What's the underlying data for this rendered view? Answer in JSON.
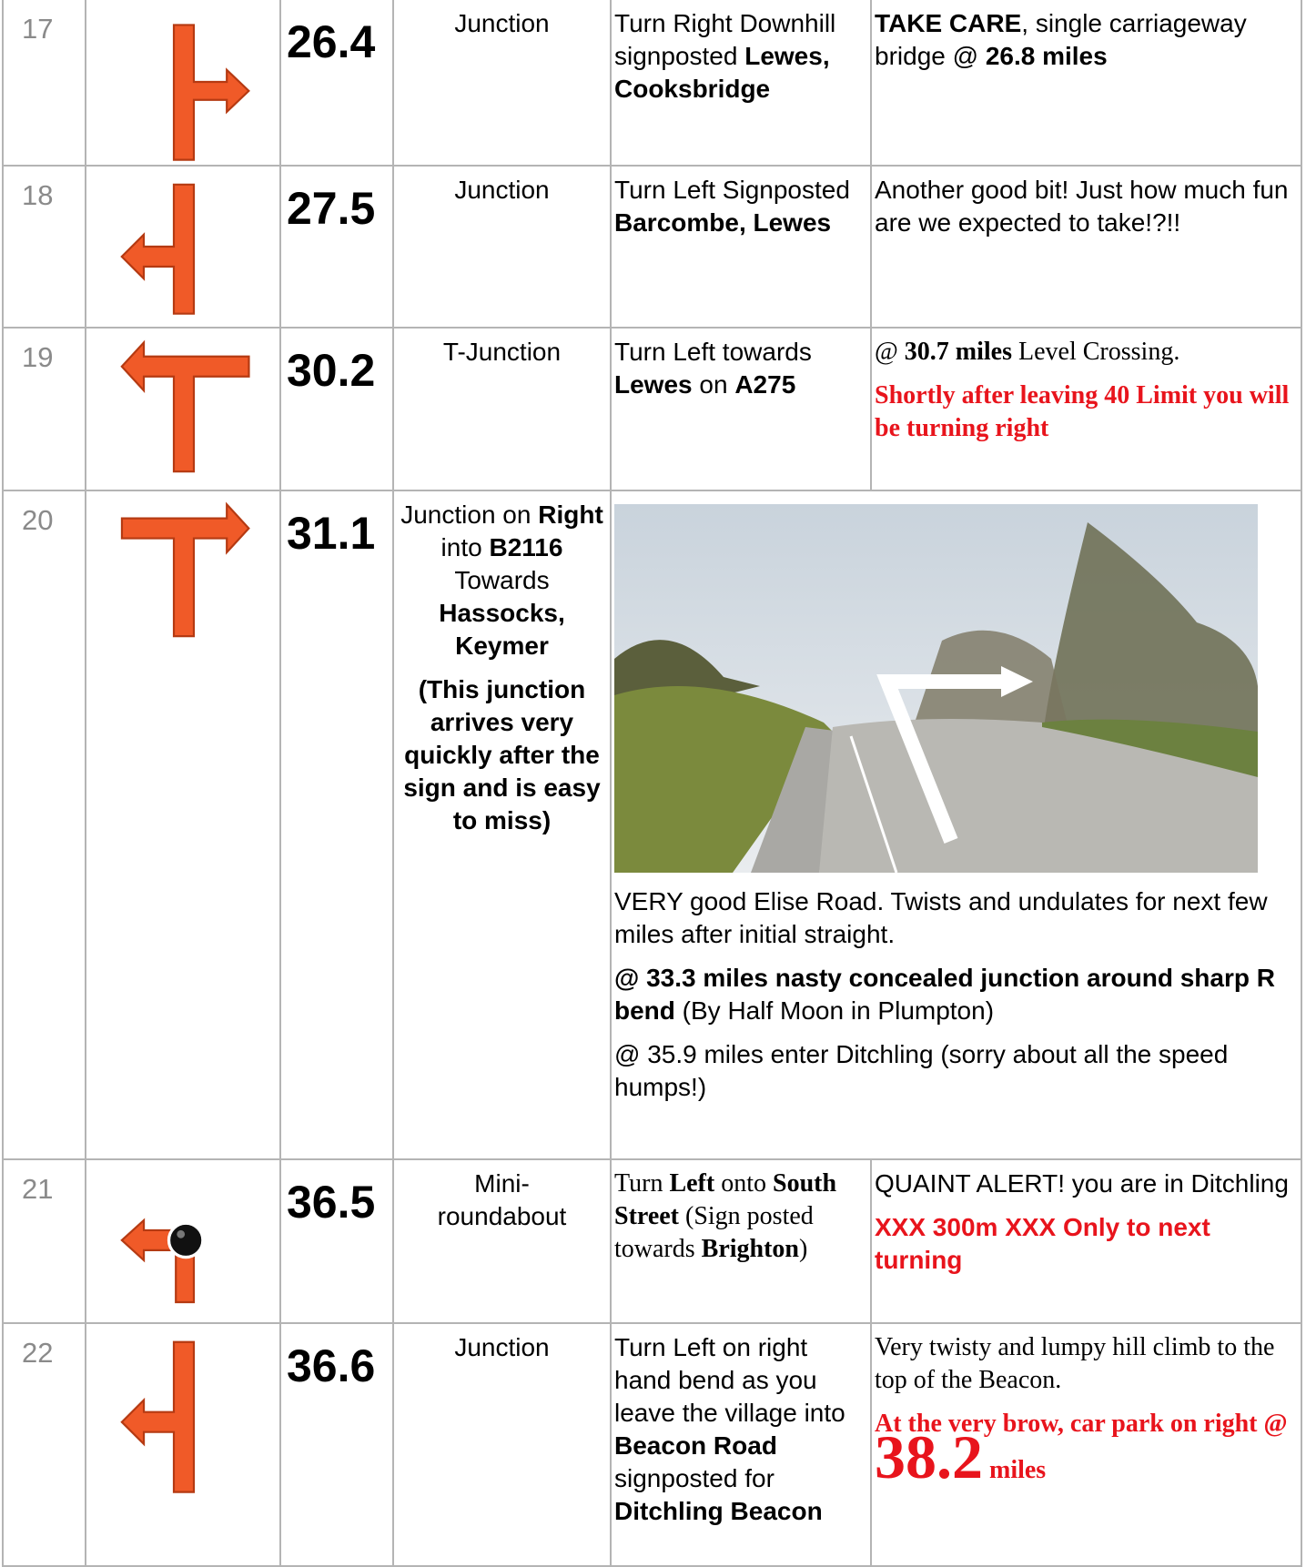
{
  "rows": [
    {
      "num": "17",
      "miles": "26.4",
      "type": [
        [
          "Junction"
        ]
      ],
      "instruction": [
        [
          "Turn Right Downhill signposted",
          "Lewes, Cooksbridge"
        ]
      ],
      "notes": [
        [
          "TAKE CARE",
          ", single carriageway bridge @",
          "26.8 miles"
        ]
      ]
    },
    {
      "num": "18",
      "miles": "27.5",
      "type": [
        [
          "Junction"
        ]
      ],
      "instruction": [
        [
          "Turn Left Signposted",
          "Barcombe, Lewes"
        ]
      ],
      "notes": [
        [
          "Another good bit! Just how much fun are we expected to take!?!!"
        ]
      ]
    },
    {
      "num": "19",
      "miles": "30.2",
      "type": [
        [
          "T-Junction"
        ]
      ],
      "instruction": [
        [
          "Turn Left towards",
          "Lewes",
          "on",
          "A275"
        ]
      ],
      "notes": [
        [
          "@",
          "30.7 miles",
          "Level Crossing."
        ],
        [
          "Shortly after leaving 40 Limit you will be turning right"
        ]
      ]
    },
    {
      "num": "20",
      "miles": "31.1",
      "type": [
        [
          "Junction on",
          "Right",
          "into",
          "B2116",
          "Towards",
          "Hassocks, Keymer"
        ],
        [
          "(This junction arrives very quickly after the sign and is easy to miss)"
        ]
      ],
      "notes": [
        [
          "VERY good Elise Road. Twists and undulates for next few miles after initial straight."
        ],
        [
          "@ 33.3 miles nasty concealed junction around sharp R bend",
          "(By Half Moon in Plumpton)"
        ],
        [
          "@ 35.9 miles enter Ditchling (sorry about all the speed humps!)"
        ]
      ]
    },
    {
      "num": "21",
      "miles": "36.5",
      "type": [
        [
          "Mini-",
          "roundabout"
        ]
      ],
      "instruction": [
        [
          "Turn",
          "Left",
          "onto",
          "South Street",
          "(Sign posted towards",
          "Brighton",
          ")"
        ]
      ],
      "notes": [
        [
          "QUAINT ALERT! you are in Ditchling"
        ],
        [
          "XXX 300m XXX Only to next turning"
        ]
      ]
    },
    {
      "num": "22",
      "miles": "36.6",
      "type": [
        [
          "Junction"
        ]
      ],
      "instruction": [
        [
          "Turn Left on right hand bend as you leave the village into",
          "Beacon Road",
          "signposted for",
          "Ditchling Beacon"
        ]
      ],
      "notes": [
        [
          "Very twisty and lumpy hill climb to the top of the Beacon."
        ],
        [
          "At the very brow, car park on right @",
          "38.2",
          "miles"
        ]
      ]
    }
  ]
}
